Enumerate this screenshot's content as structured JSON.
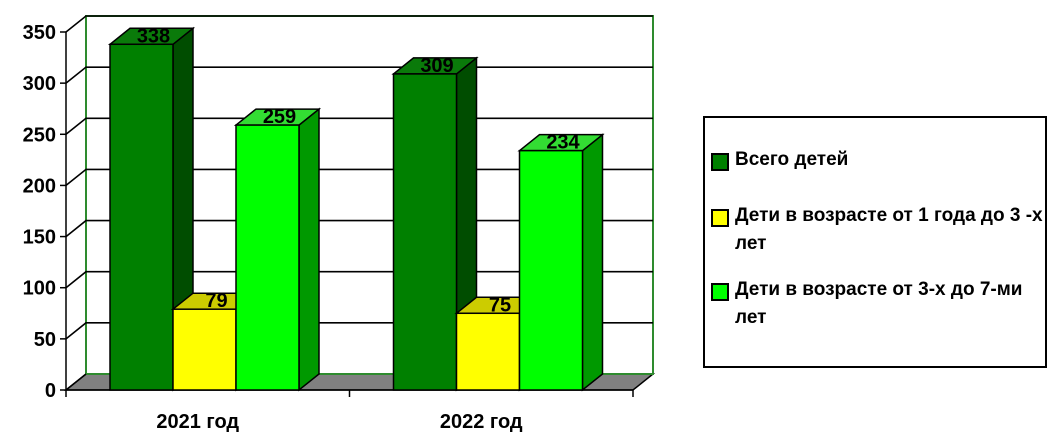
{
  "chart_data": {
    "type": "bar",
    "categories": [
      "2021 год",
      "2022 год"
    ],
    "series": [
      {
        "name": "Всего детей",
        "values": [
          338,
          309
        ],
        "color": "#008000",
        "side": "#004d00",
        "top": "#0a7a0a"
      },
      {
        "name": "Дети в возрасте от 1 года до 3 -х лет",
        "values": [
          79,
          75
        ],
        "color": "#ffff00",
        "side": "#b3b300",
        "top": "#cccc00"
      },
      {
        "name": "Дети в возрасте от 3-х до 7-ми лет",
        "values": [
          259,
          234
        ],
        "color": "#00ff00",
        "side": "#009900",
        "top": "#33dd33"
      }
    ],
    "y_ticks": [
      "0",
      "50",
      "100",
      "150",
      "200",
      "250",
      "300",
      "350"
    ],
    "ylim": [
      0,
      350
    ],
    "grid": true,
    "legend_position": "right",
    "xlabel": "",
    "ylabel": "",
    "title": ""
  }
}
